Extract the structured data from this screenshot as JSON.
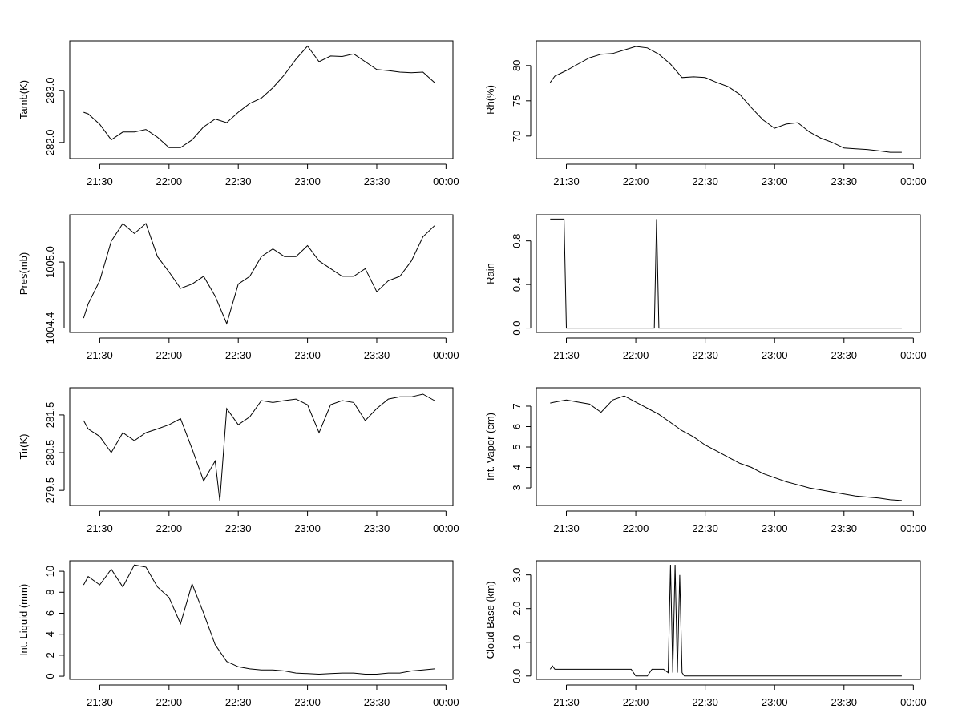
{
  "chart_data": [
    {
      "type": "line",
      "ylabel": "Tamb(K)",
      "color": "#000000",
      "x": [
        "21:23",
        "21:25",
        "21:30",
        "21:35",
        "21:40",
        "21:45",
        "21:50",
        "21:55",
        "22:00",
        "22:05",
        "22:10",
        "22:15",
        "22:20",
        "22:25",
        "22:30",
        "22:35",
        "22:40",
        "22:45",
        "22:50",
        "22:55",
        "23:00",
        "23:05",
        "23:10",
        "23:15",
        "23:20",
        "23:25",
        "23:30",
        "23:35",
        "23:40",
        "23:45",
        "23:50",
        "23:55"
      ],
      "values": [
        282.58,
        282.55,
        282.35,
        282.05,
        282.2,
        282.2,
        282.25,
        282.1,
        281.9,
        281.9,
        282.05,
        282.3,
        282.45,
        282.38,
        282.58,
        282.75,
        282.85,
        283.05,
        283.3,
        283.6,
        283.85,
        283.55,
        283.66,
        283.65,
        283.7,
        283.55,
        283.4,
        283.38,
        283.35,
        283.34,
        283.35,
        283.15
      ],
      "xlim": [
        "21:17",
        "00:03"
      ],
      "xticks": [
        "21:30",
        "22:00",
        "22:30",
        "23:00",
        "23:30",
        "00:00"
      ],
      "ylim": [
        281.69,
        283.95
      ],
      "yticks": [
        {
          "value": 282,
          "label": "282.0"
        },
        {
          "value": 283,
          "label": "283.0"
        }
      ]
    },
    {
      "type": "line",
      "ylabel": "Rh(%)",
      "color": "#000000",
      "x": [
        "21:23",
        "21:25",
        "21:30",
        "21:35",
        "21:40",
        "21:45",
        "21:50",
        "21:55",
        "22:00",
        "22:05",
        "22:10",
        "22:15",
        "22:20",
        "22:25",
        "22:30",
        "22:35",
        "22:40",
        "22:45",
        "22:50",
        "22:55",
        "23:00",
        "23:05",
        "23:10",
        "23:15",
        "23:20",
        "23:25",
        "23:30",
        "23:35",
        "23:40",
        "23:45",
        "23:50",
        "23:55"
      ],
      "values": [
        77.6,
        78.5,
        79.3,
        80.2,
        81.1,
        81.6,
        81.7,
        82.2,
        82.7,
        82.5,
        81.6,
        80.2,
        78.3,
        78.4,
        78.3,
        77.6,
        77,
        75.9,
        74,
        72.3,
        71.1,
        71.7,
        71.9,
        70.6,
        69.7,
        69.1,
        68.3,
        68.2,
        68.1,
        67.9,
        67.7,
        67.7
      ],
      "xlim": [
        "21:17",
        "00:03"
      ],
      "xticks": [
        "21:30",
        "22:00",
        "22:30",
        "23:00",
        "23:30",
        "00:00"
      ],
      "ylim": [
        66.8,
        83.5
      ],
      "yticks": [
        70,
        75,
        80
      ]
    },
    {
      "type": "line",
      "ylabel": "Pres(mb)",
      "color": "#000000",
      "x": [
        "21:23",
        "21:25",
        "21:30",
        "21:35",
        "21:40",
        "21:45",
        "21:50",
        "21:55",
        "22:00",
        "22:05",
        "22:10",
        "22:15",
        "22:20",
        "22:25",
        "22:30",
        "22:35",
        "22:40",
        "22:45",
        "22:50",
        "22:55",
        "23:00",
        "23:05",
        "23:10",
        "23:15",
        "23:20",
        "23:25",
        "23:30",
        "23:35",
        "23:40",
        "23:45",
        "23:50",
        "23:55"
      ],
      "values": [
        1004.49,
        1004.62,
        1004.83,
        1005.19,
        1005.35,
        1005.26,
        1005.35,
        1005.05,
        1004.91,
        1004.76,
        1004.8,
        1004.87,
        1004.69,
        1004.44,
        1004.8,
        1004.87,
        1005.05,
        1005.12,
        1005.05,
        1005.05,
        1005.15,
        1005.01,
        1004.94,
        1004.87,
        1004.87,
        1004.94,
        1004.73,
        1004.83,
        1004.87,
        1005.01,
        1005.23,
        1005.33
      ],
      "xlim": [
        "21:17",
        "00:03"
      ],
      "xticks": [
        "21:30",
        "22:00",
        "22:30",
        "23:00",
        "23:30",
        "00:00"
      ],
      "ylim": [
        1004.36,
        1005.43
      ],
      "yticks": [
        1004.4,
        {
          "value": 1005,
          "label": "1005.0"
        }
      ]
    },
    {
      "type": "line",
      "ylabel": "Rain",
      "color": "#000000",
      "x": [
        "21:23",
        "21:29",
        "21:30",
        "22:08",
        "22:09",
        "22:10",
        "23:55"
      ],
      "values": [
        1,
        1,
        0,
        0,
        1,
        0,
        0
      ],
      "xlim": [
        "21:17",
        "00:03"
      ],
      "xticks": [
        "21:30",
        "22:00",
        "22:30",
        "23:00",
        "23:30",
        "00:00"
      ],
      "ylim": [
        -0.04,
        1.04
      ],
      "yticks": [
        {
          "value": 0,
          "label": "0.0"
        },
        0.4,
        0.8
      ]
    },
    {
      "type": "line",
      "ylabel": "Tir(K)",
      "color": "#000000",
      "x": [
        "21:23",
        "21:25",
        "21:30",
        "21:35",
        "21:40",
        "21:45",
        "21:50",
        "21:55",
        "22:00",
        "22:05",
        "22:10",
        "22:15",
        "22:20",
        "22:22",
        "22:25",
        "22:30",
        "22:35",
        "22:40",
        "22:45",
        "22:50",
        "22:55",
        "23:00",
        "23:05",
        "23:10",
        "23:15",
        "23:20",
        "23:25",
        "23:30",
        "23:35",
        "23:40",
        "23:45",
        "23:50",
        "23:55"
      ],
      "values": [
        281.35,
        281.13,
        280.93,
        280.5,
        281.03,
        280.82,
        281.03,
        281.13,
        281.24,
        281.4,
        280.6,
        279.75,
        280.28,
        279.22,
        281.67,
        281.24,
        281.45,
        281.88,
        281.83,
        281.88,
        281.92,
        281.77,
        281.03,
        281.77,
        281.88,
        281.83,
        281.35,
        281.67,
        281.92,
        281.98,
        281.98,
        282.05,
        281.88
      ],
      "xlim": [
        "21:17",
        "00:03"
      ],
      "xticks": [
        "21:30",
        "22:00",
        "22:30",
        "23:00",
        "23:30",
        "00:00"
      ],
      "ylim": [
        279.1,
        282.22
      ],
      "yticks": [
        279.5,
        280.5,
        281.5
      ]
    },
    {
      "type": "line",
      "ylabel": "Int. Vapor (cm)",
      "color": "#000000",
      "x": [
        "21:23",
        "21:25",
        "21:30",
        "21:35",
        "21:40",
        "21:45",
        "21:50",
        "21:55",
        "22:00",
        "22:05",
        "22:10",
        "22:15",
        "22:20",
        "22:25",
        "22:30",
        "22:35",
        "22:40",
        "22:45",
        "22:50",
        "22:55",
        "23:00",
        "23:05",
        "23:10",
        "23:15",
        "23:20",
        "23:25",
        "23:30",
        "23:35",
        "23:40",
        "23:45",
        "23:50",
        "23:55"
      ],
      "values": [
        7.15,
        7.2,
        7.3,
        7.2,
        7.1,
        6.7,
        7.3,
        7.5,
        7.2,
        6.9,
        6.6,
        6.2,
        5.8,
        5.5,
        5.1,
        4.8,
        4.5,
        4.2,
        4.0,
        3.7,
        3.5,
        3.3,
        3.15,
        3.0,
        2.9,
        2.8,
        2.7,
        2.6,
        2.55,
        2.5,
        2.42,
        2.38
      ],
      "xlim": [
        "21:17",
        "00:03"
      ],
      "xticks": [
        "21:30",
        "22:00",
        "22:30",
        "23:00",
        "23:30",
        "00:00"
      ],
      "ylim": [
        2.14,
        7.9
      ],
      "yticks": [
        3,
        4,
        5,
        6,
        7
      ]
    },
    {
      "type": "line",
      "ylabel": "Int. Liquid (mm)",
      "color": "#000000",
      "x": [
        "21:23",
        "21:25",
        "21:30",
        "21:35",
        "21:40",
        "21:45",
        "21:50",
        "21:55",
        "22:00",
        "22:05",
        "22:10",
        "22:15",
        "22:20",
        "22:25",
        "22:30",
        "22:35",
        "22:40",
        "22:45",
        "22:50",
        "22:55",
        "23:00",
        "23:05",
        "23:10",
        "23:15",
        "23:20",
        "23:25",
        "23:30",
        "23:35",
        "23:40",
        "23:45",
        "23:50",
        "23:55"
      ],
      "values": [
        8.7,
        9.5,
        8.7,
        10.2,
        8.5,
        10.6,
        10.4,
        8.5,
        7.5,
        5.0,
        8.8,
        6.0,
        3.0,
        1.4,
        0.9,
        0.7,
        0.6,
        0.6,
        0.5,
        0.3,
        0.25,
        0.2,
        0.25,
        0.3,
        0.3,
        0.2,
        0.2,
        0.3,
        0.3,
        0.5,
        0.6,
        0.7
      ],
      "xlim": [
        "21:17",
        "00:03"
      ],
      "xticks": [
        "21:30",
        "22:00",
        "22:30",
        "23:00",
        "23:30",
        "00:00"
      ],
      "ylim": [
        -0.3,
        11
      ],
      "yticks": [
        0,
        2,
        4,
        6,
        8,
        10
      ]
    },
    {
      "type": "line",
      "ylabel": "Cloud Base (km)",
      "color": "#000000",
      "x": [
        "21:23",
        "21:24",
        "21:25",
        "21:45",
        "21:58",
        "22:00",
        "22:05",
        "22:07",
        "22:12",
        "22:14",
        "22:15",
        "22:16",
        "22:17",
        "22:18",
        "22:19",
        "22:20",
        "22:21",
        "23:55"
      ],
      "values": [
        0.2,
        0.3,
        0.2,
        0.2,
        0.2,
        0,
        0,
        0.2,
        0.2,
        0.1,
        3.3,
        0.1,
        3.3,
        0.1,
        3.0,
        0.1,
        0,
        0
      ],
      "xlim": [
        "21:17",
        "00:03"
      ],
      "xticks": [
        "21:30",
        "22:00",
        "22:30",
        "23:00",
        "23:30",
        "00:00"
      ],
      "ylim": [
        -0.1,
        3.42
      ],
      "yticks": [
        {
          "value": 0,
          "label": "0.0"
        },
        {
          "value": 1,
          "label": "1.0"
        },
        {
          "value": 2,
          "label": "2.0"
        },
        {
          "value": 3,
          "label": "3.0"
        }
      ]
    }
  ]
}
